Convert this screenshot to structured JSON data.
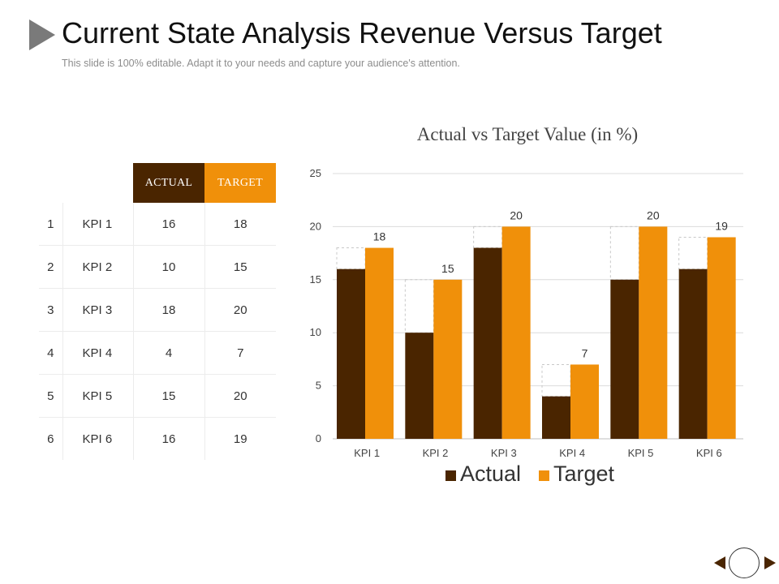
{
  "header": {
    "title": "Current State Analysis Revenue Versus Target",
    "subtitle": "This slide is 100% editable. Adapt it to your needs and capture your audience's attention."
  },
  "table": {
    "headers": {
      "actual": "ACTUAL",
      "target": "TARGET"
    },
    "rows": [
      {
        "num": "1",
        "kpi": "KPI 1",
        "actual": "16",
        "target": "18"
      },
      {
        "num": "2",
        "kpi": "KPI 2",
        "actual": "10",
        "target": "15"
      },
      {
        "num": "3",
        "kpi": "KPI 3",
        "actual": "18",
        "target": "20"
      },
      {
        "num": "4",
        "kpi": "KPI 4",
        "actual": "4",
        "target": "7"
      },
      {
        "num": "5",
        "kpi": "KPI 5",
        "actual": "15",
        "target": "20"
      },
      {
        "num": "6",
        "kpi": "KPI 6",
        "actual": "16",
        "target": "19"
      }
    ]
  },
  "chart_data": {
    "type": "bar",
    "title": "Actual vs Target Value (in %)",
    "xlabel": "",
    "ylabel": "",
    "categories": [
      "KPI 1",
      "KPI 2",
      "KPI 3",
      "KPI 4",
      "KPI 5",
      "KPI 6"
    ],
    "series": [
      {
        "name": "Actual",
        "values": [
          16,
          10,
          18,
          4,
          15,
          16
        ],
        "color": "#4a2500"
      },
      {
        "name": "Target",
        "values": [
          18,
          15,
          20,
          7,
          20,
          19
        ],
        "color": "#f0900a"
      }
    ],
    "data_labels_series": "Target",
    "ylim": [
      0,
      25
    ],
    "yticks": [
      0,
      5,
      10,
      15,
      20,
      25
    ],
    "grid": true,
    "legend_position": "bottom"
  },
  "colors": {
    "actual": "#4a2500",
    "target": "#f0900a",
    "title_arrow": "#7a7a7a"
  },
  "icons": {
    "title": "triangle-arrow-icon",
    "prev": "left-triangle-icon",
    "home": "circle-icon",
    "next": "right-triangle-icon"
  }
}
